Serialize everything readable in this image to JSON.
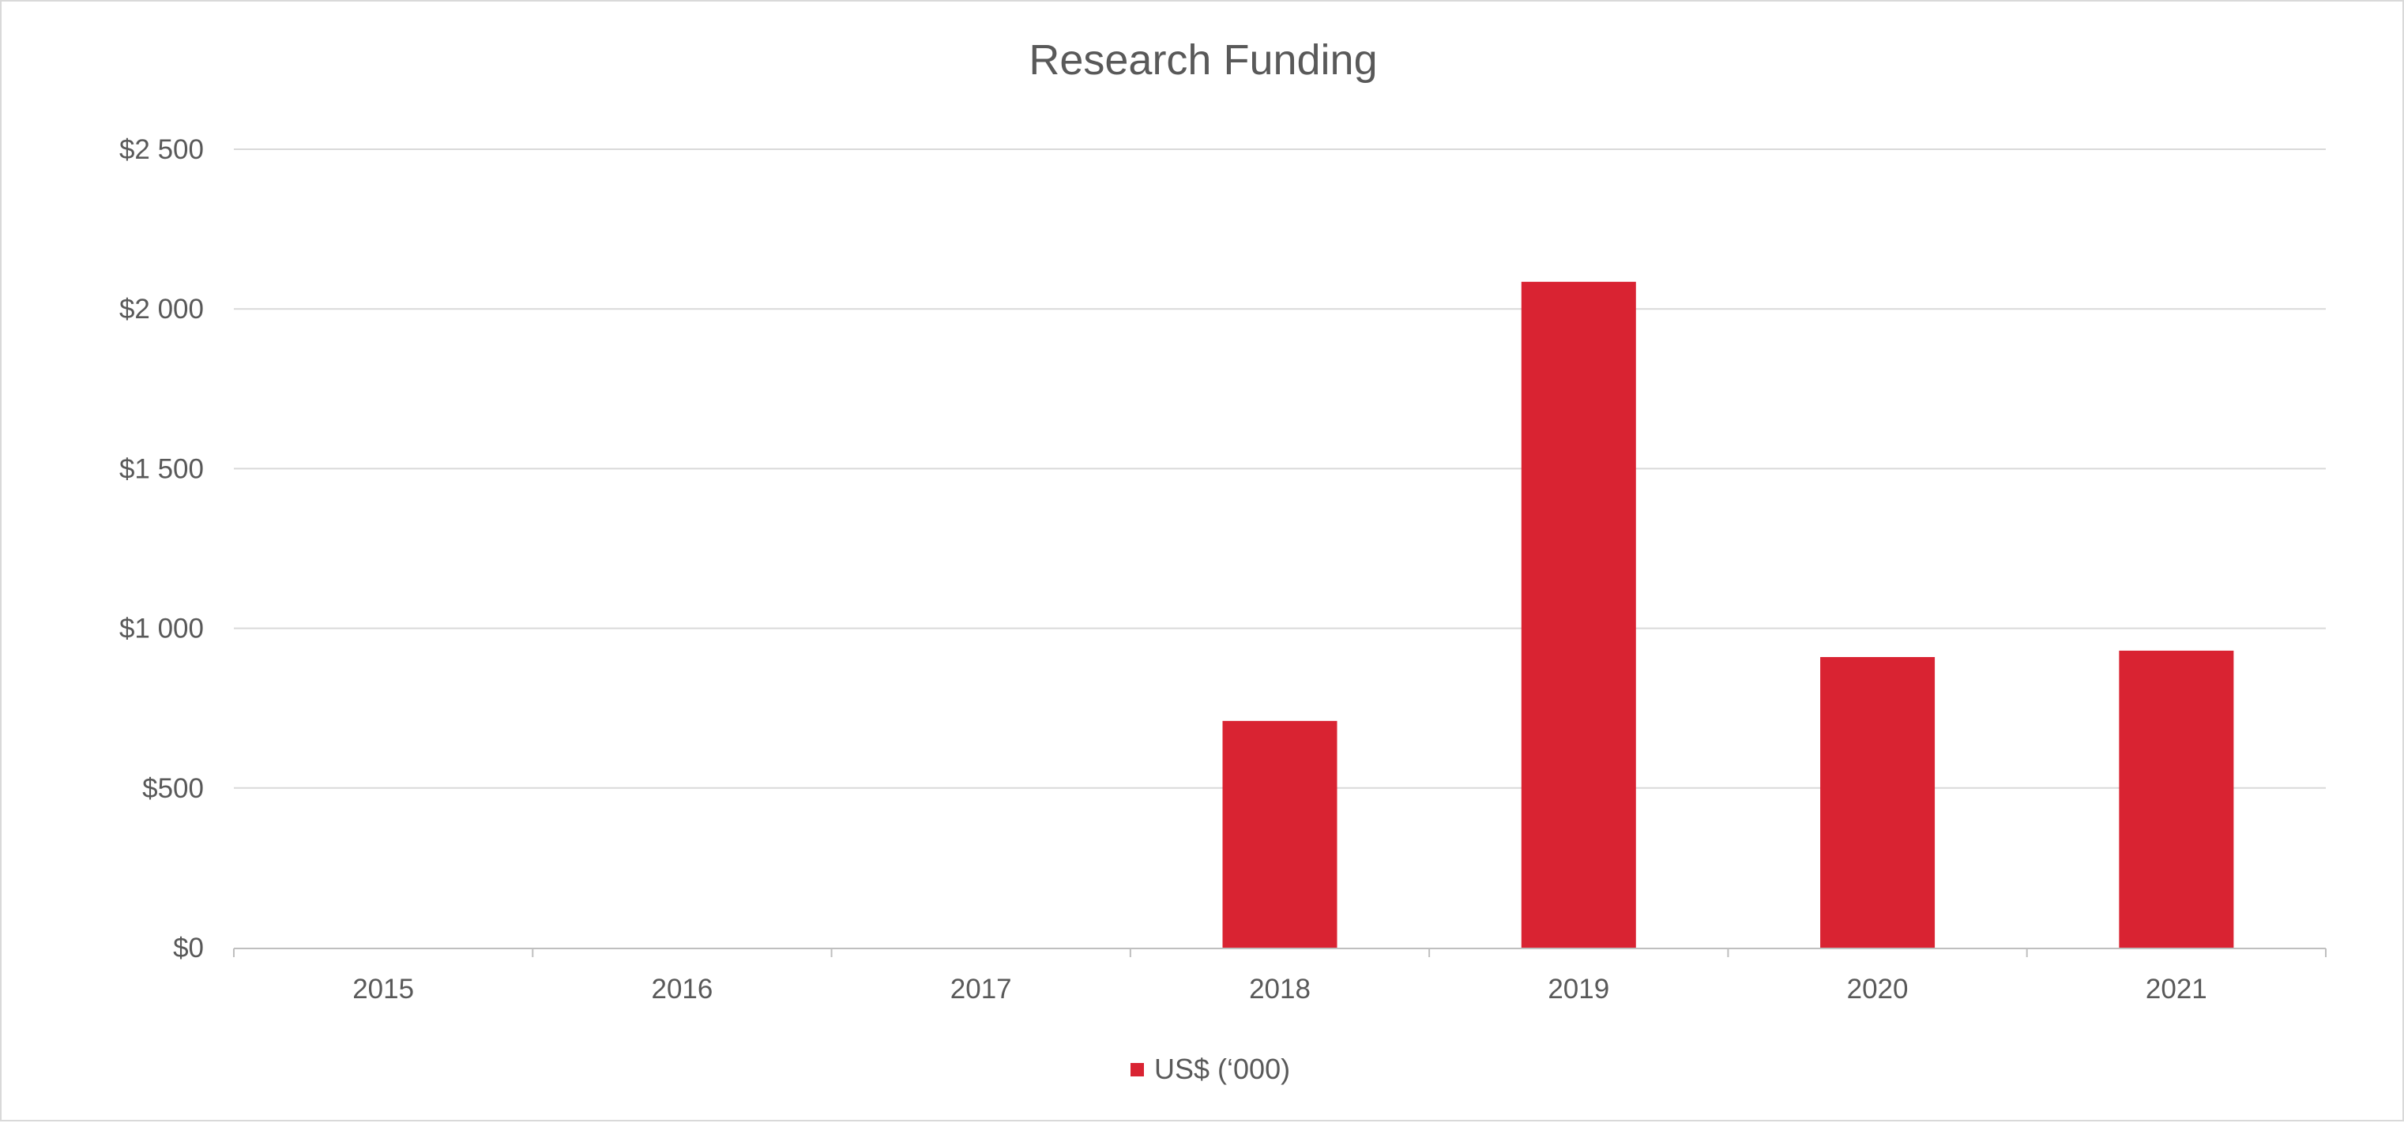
{
  "chart_data": {
    "type": "bar",
    "title": "Research Funding",
    "categories": [
      "2015",
      "2016",
      "2017",
      "2018",
      "2019",
      "2020",
      "2021"
    ],
    "series": [
      {
        "name": "US$ (‘000)",
        "values": [
          0,
          0,
          0,
          710,
          2085,
          910,
          930
        ],
        "color": "#d92332"
      }
    ],
    "ylim": [
      0,
      2500
    ],
    "yticks": [
      0,
      500,
      1000,
      1500,
      2000,
      2500
    ],
    "ytick_labels": [
      "$0",
      "$500",
      "$1 000",
      "$1 500",
      "$2 000",
      "$2 500"
    ],
    "grid": true,
    "gridline_color": "#d9d9d9",
    "legend_position": "bottom",
    "xlabel": "",
    "ylabel": ""
  }
}
